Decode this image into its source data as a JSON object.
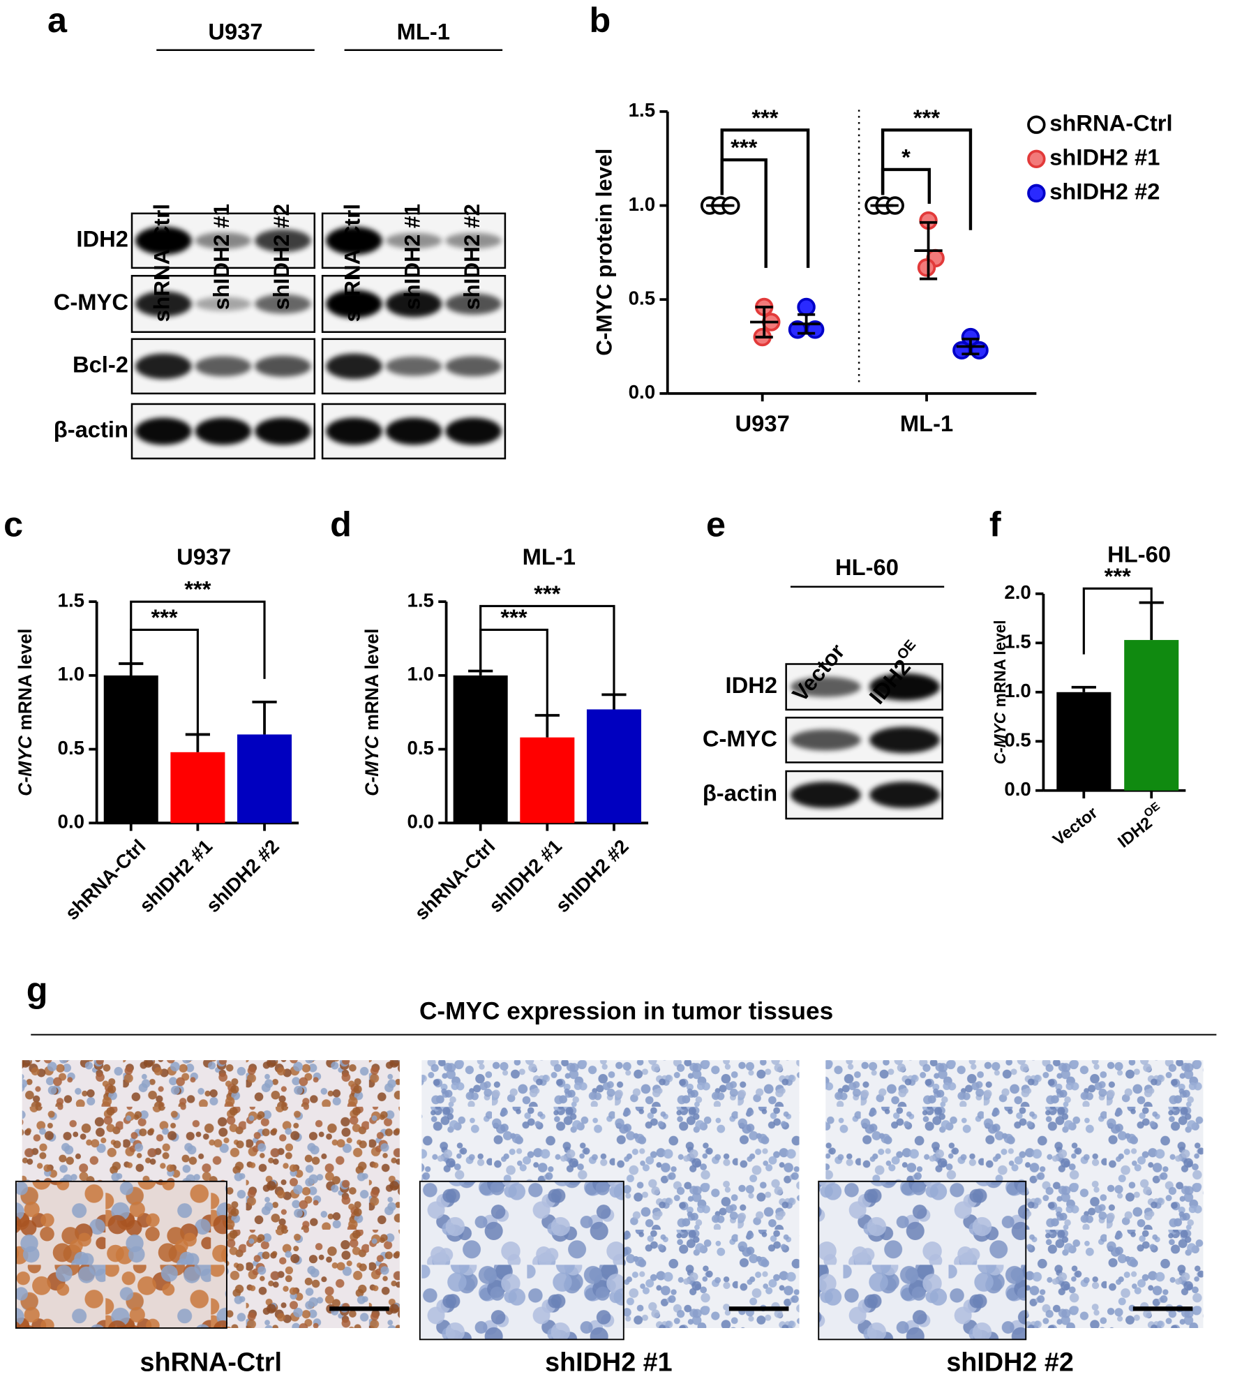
{
  "panel_labels": [
    "a",
    "b",
    "c",
    "d",
    "e",
    "f",
    "g"
  ],
  "blot_a": {
    "cell_lines": [
      "U937",
      "ML-1"
    ],
    "lanes": [
      "shRNA-Ctrl",
      "shIDH2 #1",
      "shIDH2 #2"
    ],
    "proteins": [
      "IDH2",
      "C-MYC",
      "Bcl-2",
      "β-actin"
    ]
  },
  "blot_e": {
    "cell_line": "HL-60",
    "lanes": [
      {
        "text": "Vector"
      },
      {
        "text": "IDH2",
        "sup": "OE"
      }
    ],
    "proteins": [
      "IDH2",
      "C-MYC",
      "β-actin"
    ]
  },
  "chart_data": [
    {
      "type": "dot",
      "ylabel": "C-MYC protein level",
      "categories": [
        "U937",
        "ML-1"
      ],
      "ylim": [
        0,
        1.5
      ],
      "yticks": [
        {
          "value": 0,
          "label": "0.0"
        },
        0.5,
        {
          "value": 1,
          "label": "1.0"
        },
        1.5
      ],
      "series": [
        {
          "name": "shRNA-Ctrl",
          "color": "#ffffff",
          "edge_color": "#000000",
          "points": [
            [
              1,
              1,
              1
            ],
            [
              1,
              1,
              1
            ]
          ],
          "mean": [
            1,
            1
          ],
          "sd": [
            0,
            0
          ]
        },
        {
          "name": "shIDH2 #1",
          "color": "#f27a7a",
          "edge_color": "#e23a3a",
          "points": [
            [
              0.46,
              0.38,
              0.3
            ],
            [
              0.92,
              0.72,
              0.67
            ]
          ],
          "mean": [
            0.38,
            0.76
          ],
          "sd": [
            0.08,
            0.15
          ]
        },
        {
          "name": "shIDH2 #2",
          "color": "#2a2aff",
          "edge_color": "#0000c8",
          "points": [
            [
              0.46,
              0.34,
              0.34
            ],
            [
              0.3,
              0.23,
              0.23
            ]
          ],
          "mean": [
            0.37,
            0.25
          ],
          "sd": [
            0.05,
            0.04
          ]
        }
      ],
      "significance": [
        "***",
        "***",
        "*",
        "***"
      ]
    },
    {
      "type": "bar",
      "title": "U937",
      "ylabel_gene": "C-MYC",
      "ylabel": "mRNA level",
      "categories": [
        "shRNA-Ctrl",
        "shIDH2 #1",
        "shIDH2 #2"
      ],
      "values": [
        1.0,
        0.48,
        0.6
      ],
      "errors": [
        0.08,
        0.12,
        0.22
      ],
      "colors": [
        "#000000",
        "#ff0000",
        "#0000c0"
      ],
      "ylim": [
        0,
        1.5
      ],
      "yticks": [
        {
          "value": 0,
          "label": "0.0"
        },
        0.5,
        {
          "value": 1,
          "label": "1.0"
        },
        1.5
      ],
      "significance": [
        "***",
        "***"
      ]
    },
    {
      "type": "bar",
      "title": "ML-1",
      "ylabel_gene": "C-MYC",
      "ylabel": "mRNA level",
      "categories": [
        "shRNA-Ctrl",
        "shIDH2 #1",
        "shIDH2 #2"
      ],
      "values": [
        1.0,
        0.58,
        0.77
      ],
      "errors": [
        0.03,
        0.15,
        0.1
      ],
      "colors": [
        "#000000",
        "#ff0000",
        "#0000c0"
      ],
      "ylim": [
        0,
        1.5
      ],
      "yticks": [
        {
          "value": 0,
          "label": "0.0"
        },
        0.5,
        {
          "value": 1,
          "label": "1.0"
        },
        1.5
      ],
      "significance": [
        "***",
        "***"
      ]
    },
    {
      "type": "bar",
      "title": "HL-60",
      "ylabel_gene": "C-MYC",
      "ylabel": "mRNA level",
      "categories": [
        "Vector",
        "IDH2"
      ],
      "category_sup": [
        null,
        "OE"
      ],
      "values": [
        1.0,
        1.53
      ],
      "errors": [
        0.05,
        0.38
      ],
      "colors": [
        "#000000",
        "#108a10"
      ],
      "ylim": [
        0,
        2.0
      ],
      "yticks": [
        {
          "value": 0,
          "label": "0.0"
        },
        0.5,
        {
          "value": 1,
          "label": "1.0"
        },
        1.5,
        {
          "value": 2,
          "label": "2.0"
        }
      ],
      "significance": [
        "***"
      ]
    }
  ],
  "histology": {
    "title": "C-MYC expression in tumor tissues",
    "captions": [
      "shRNA-Ctrl",
      "shIDH2 #1",
      "shIDH2 #2"
    ]
  }
}
